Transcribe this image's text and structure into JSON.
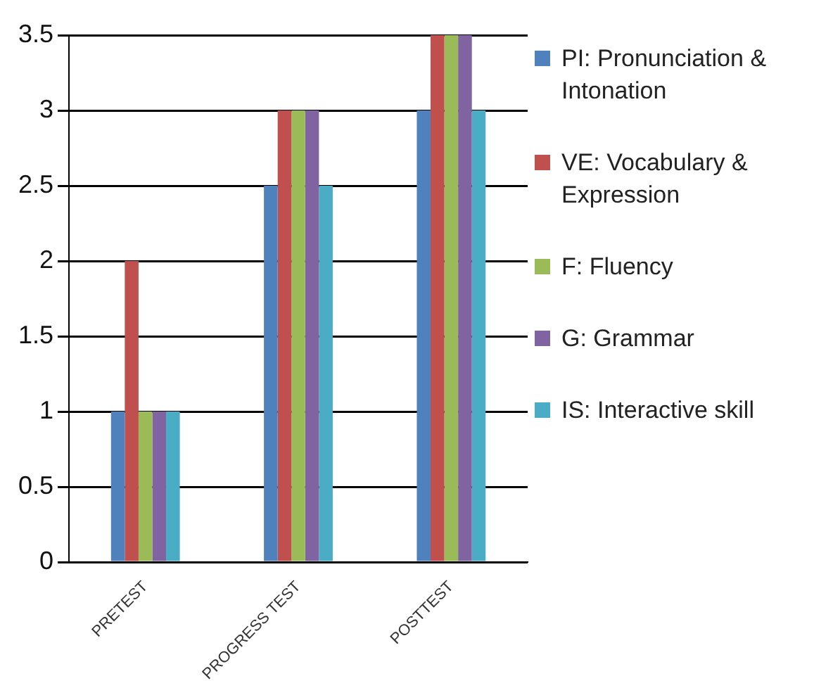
{
  "chart_data": {
    "type": "bar",
    "categories": [
      "PRETEST",
      "PROGRESS TEST",
      "POSTTEST"
    ],
    "series": [
      {
        "name": "PI: Pronunciation & Intonation",
        "color": "#4f81bd",
        "values": [
          1,
          2.5,
          3
        ]
      },
      {
        "name": "VE: Vocabulary & Expression",
        "color": "#c0504d",
        "values": [
          2,
          3,
          3.5
        ]
      },
      {
        "name": "F: Fluency",
        "color": "#9bbb59",
        "values": [
          1,
          3,
          3.5
        ]
      },
      {
        "name": "G: Grammar",
        "color": "#8064a2",
        "values": [
          1,
          3,
          3.5
        ]
      },
      {
        "name": "IS: Interactive skill",
        "color": "#4bacc6",
        "values": [
          1,
          2.5,
          3
        ]
      }
    ],
    "ylim": [
      0,
      3.5
    ],
    "yticks": [
      0,
      0.5,
      1,
      1.5,
      2,
      2.5,
      3,
      3.5
    ],
    "grid": "y",
    "legend": "right"
  }
}
